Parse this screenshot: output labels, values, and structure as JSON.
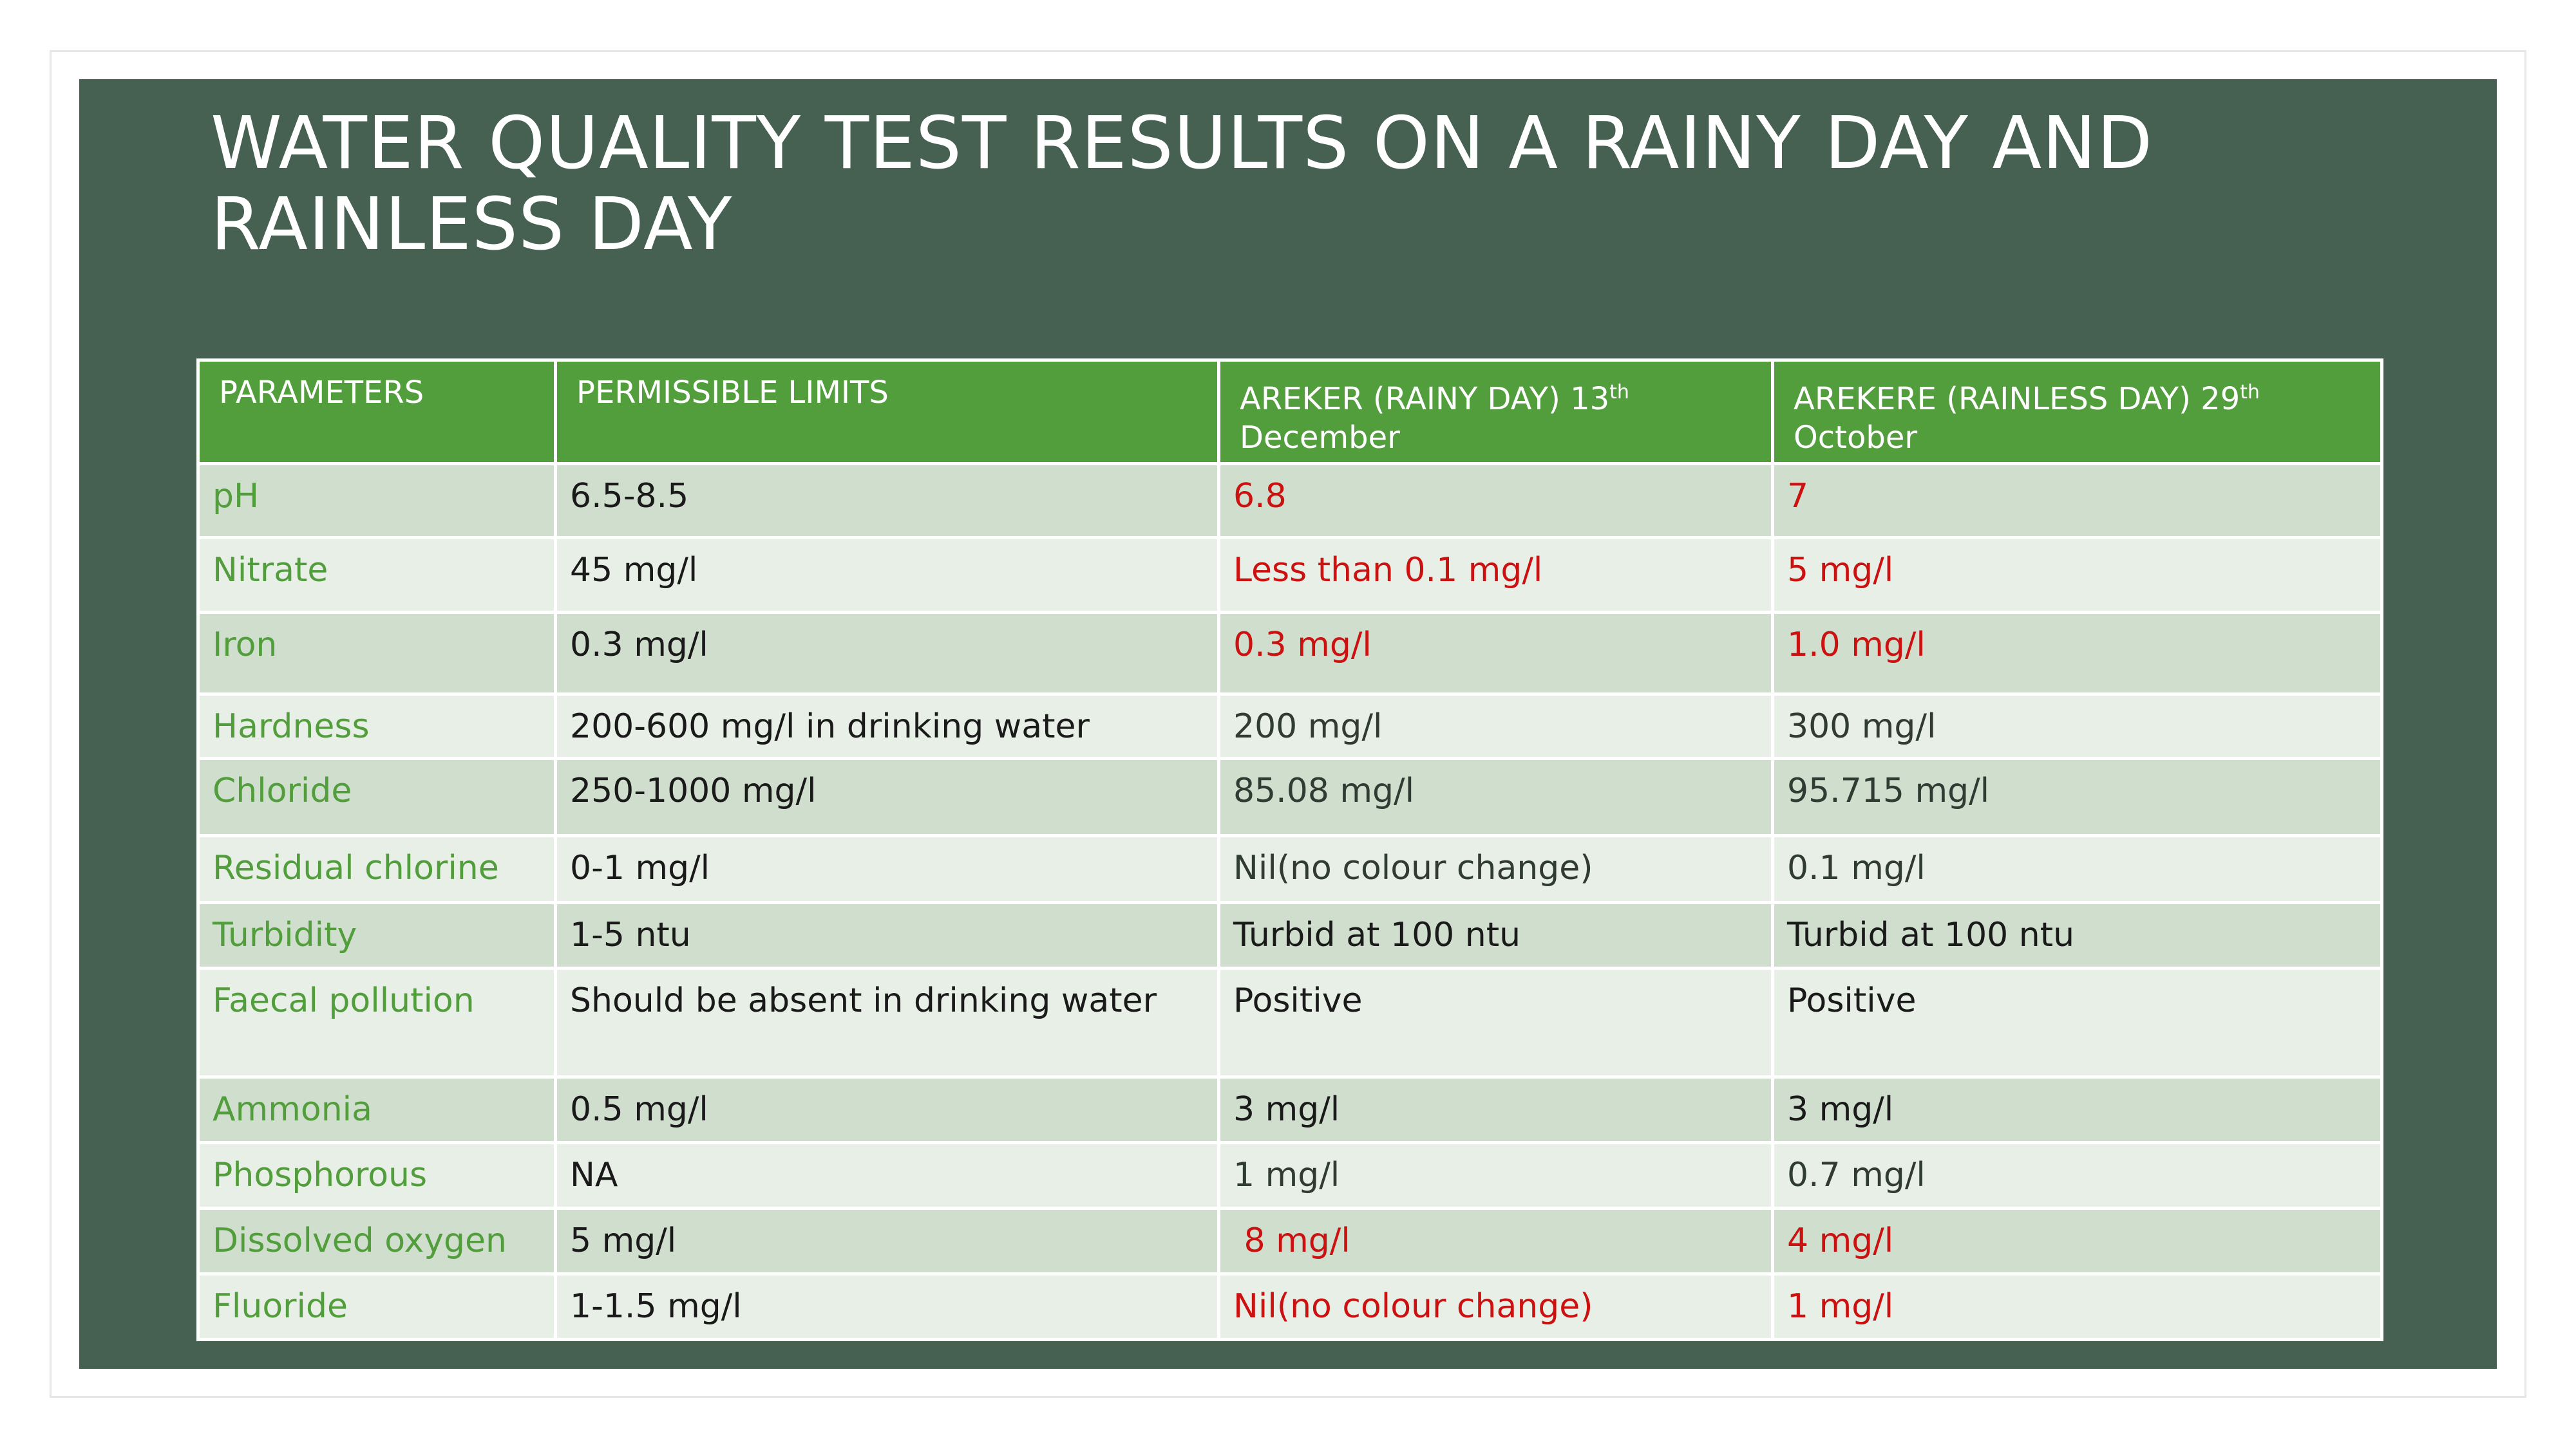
{
  "slide": {
    "title_line1": "WATER QUALITY TEST RESULTS ON A RAINY DAY AND",
    "title_line2": "RAINLESS DAY"
  },
  "table": {
    "headers": {
      "parameters": "PARAMETERS",
      "limits": "PERMISSIBLE LIMITS",
      "rainy_pre": "AREKER (RAINY DAY) 13",
      "rainy_sup": "th",
      "rainy_post": "December",
      "rainless_pre": "AREKERE (RAINLESS DAY) 29",
      "rainless_sup": "th",
      "rainless_post": "October"
    },
    "rows": [
      {
        "parameter": "pH",
        "limit": "6.5-8.5",
        "rainy": "6.8",
        "rainless": "7"
      },
      {
        "parameter": "Nitrate",
        "limit": "45 mg/l",
        "rainy": "Less than 0.1 mg/l",
        "rainless": "5 mg/l"
      },
      {
        "parameter": "Iron",
        "limit": "0.3 mg/l",
        "rainy": "0.3 mg/l",
        "rainless": "1.0 mg/l"
      },
      {
        "parameter": "Hardness",
        "limit": "200-600 mg/l in drinking water",
        "rainy": "200 mg/l",
        "rainless": "300 mg/l"
      },
      {
        "parameter": "Chloride",
        "limit": "250-1000 mg/l",
        "rainy": "85.08 mg/l",
        "rainless": "95.715 mg/l"
      },
      {
        "parameter": "Residual chlorine",
        "limit": "0-1 mg/l",
        "rainy": "Nil(no colour change)",
        "rainless": "0.1 mg/l"
      },
      {
        "parameter": "Turbidity",
        "limit": "1-5 ntu",
        "rainy": "Turbid at 100 ntu",
        "rainless": "Turbid at 100 ntu"
      },
      {
        "parameter": "Faecal pollution",
        "limit": "Should be absent in drinking water",
        "rainy": "Positive",
        "rainless": "Positive"
      },
      {
        "parameter": "Ammonia",
        "limit": "0.5 mg/l",
        "rainy": "3 mg/l",
        "rainless": "3 mg/l"
      },
      {
        "parameter": "Phosphorous",
        "limit": "NA",
        "rainy": "1 mg/l",
        "rainless": "0.7 mg/l"
      },
      {
        "parameter": "Dissolved oxygen",
        "limit": "5 mg/l",
        "rainy": " 8 mg/l",
        "rainless": "4 mg/l"
      },
      {
        "parameter": "Fluoride",
        "limit": "1-1.5 mg/l",
        "rainy": "Nil(no colour change)",
        "rainless": "1 mg/l"
      }
    ]
  },
  "colors": {
    "slide_background": "#466051",
    "header_background": "#529d3c",
    "row_odd": "#d0dfcd",
    "row_even": "#e8efe6",
    "parameter_text": "#529d3c",
    "highlight_red": "#cc1111"
  }
}
